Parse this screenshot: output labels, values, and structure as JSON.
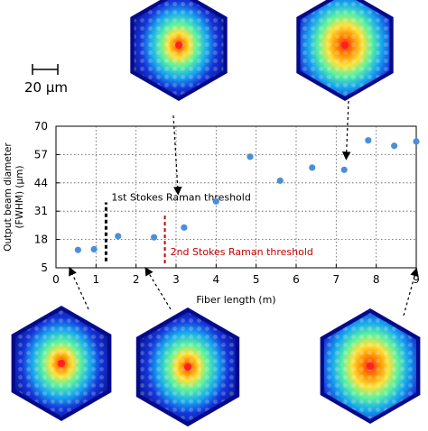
{
  "scale_bar": {
    "label": "20 µm"
  },
  "chart_data": {
    "type": "scatter",
    "xlabel": "Fiber length (m)",
    "ylabel_line1": "Output beam diameter",
    "ylabel_line2": "(FWHM) (µm)",
    "xlim": [
      0,
      9
    ],
    "ylim": [
      5,
      70
    ],
    "x_ticks": [
      0,
      1,
      2,
      3,
      4,
      5,
      6,
      7,
      8,
      9
    ],
    "y_ticks": [
      5,
      18,
      31,
      44,
      57,
      70
    ],
    "x_tick_labels": [
      "0",
      "1",
      "2",
      "3",
      "4",
      "5",
      "6",
      "7",
      "8",
      "9"
    ],
    "y_tick_labels": [
      "5",
      "18",
      "31",
      "44",
      "57",
      "70"
    ],
    "grid": true,
    "point_color": "#4a90d9",
    "points": [
      {
        "x": 0.55,
        "y": 13.2
      },
      {
        "x": 0.95,
        "y": 13.5
      },
      {
        "x": 1.55,
        "y": 19.5
      },
      {
        "x": 2.45,
        "y": 19.0
      },
      {
        "x": 3.2,
        "y": 23.5
      },
      {
        "x": 4.0,
        "y": 35.5
      },
      {
        "x": 4.85,
        "y": 56.0
      },
      {
        "x": 5.6,
        "y": 45.0
      },
      {
        "x": 6.4,
        "y": 51.0
      },
      {
        "x": 7.2,
        "y": 50.0
      },
      {
        "x": 7.8,
        "y": 63.5
      },
      {
        "x": 8.45,
        "y": 61.0
      },
      {
        "x": 9.0,
        "y": 63.0
      }
    ],
    "thresholds": [
      {
        "label": "1st Stokes Raman threshold",
        "x": 1.25,
        "y_from": 8.0,
        "y_to": 35.0,
        "color": "#000000"
      },
      {
        "label": "2nd Stokes Raman threshold",
        "x": 2.72,
        "y_from": 7.0,
        "y_to": 29.0,
        "color": "#c00000"
      }
    ]
  }
}
